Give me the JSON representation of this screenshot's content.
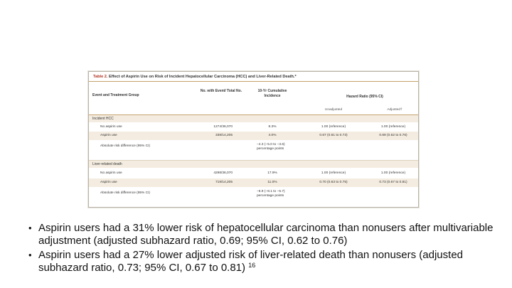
{
  "table": {
    "title_number": "Table 2.",
    "title_text": "Effect of Aspirin Use on Risk of Incident Hepatocellular Carcinoma (HCC) and Liver-Related Death.*",
    "headers": {
      "group": "Event and Treatment Group",
      "count": "No. with Event/ Total No.",
      "incidence": "10-Yr Cumulative Incidence",
      "hazard": "Hazard Ratio (95% CI)",
      "unadjusted": "Unadjusted",
      "adjusted": "Adjusted†"
    },
    "sections": [
      {
        "name": "Incident HCC",
        "rows": [
          {
            "label": "No aspirin use",
            "count": "1274/36,070",
            "incidence": "8.3%",
            "incidence2": "",
            "unadjusted": "1.00 (reference)",
            "adjusted": "1.00 (reference)"
          },
          {
            "label": "Aspirin use",
            "count": "338/14,205",
            "incidence": "4.0%",
            "incidence2": "",
            "unadjusted": "0.67 (0.61 to 0.73)",
            "adjusted": "0.69 (0.62 to 0.76)"
          },
          {
            "label": "Absolute risk difference (95% CI)",
            "count": "",
            "incidence": "−4.3 (−5.0 to −3.6)",
            "incidence2": "percentage points",
            "unadjusted": "",
            "adjusted": ""
          }
        ]
      },
      {
        "name": "Liver-related death",
        "rows": [
          {
            "label": "No aspirin use",
            "count": "4298/36,070",
            "incidence": "17.9%",
            "incidence2": "",
            "unadjusted": "1.00 (reference)",
            "adjusted": "1.00 (reference)"
          },
          {
            "label": "Aspirin use",
            "count": "719/14,205",
            "incidence": "11.0%",
            "incidence2": "",
            "unadjusted": "0.70 (0.63 to 0.75)",
            "adjusted": "0.73 (0.67 to 0.81)"
          },
          {
            "label": "Absolute risk difference (95% CI)",
            "count": "",
            "incidence": "−6.9 (−8.1 to −5.7)",
            "incidence2": "percentage points",
            "unadjusted": "",
            "adjusted": ""
          }
        ]
      }
    ]
  },
  "bullets": [
    {
      "text": "Aspirin users had a 31% lower risk of hepatocellular carcinoma than nonusers after multivariable adjustment (adjusted subhazard ratio, 0.69; 95% CI, 0.62 to 0.76)",
      "sup": ""
    },
    {
      "text": "Aspirin users had a 27% lower adjusted risk of liver-related death than nonusers (adjusted subhazard ratio, 0.73; 95% CI, 0.67 to 0.81)",
      "sup": "16"
    }
  ],
  "bullet_glyph": "•"
}
